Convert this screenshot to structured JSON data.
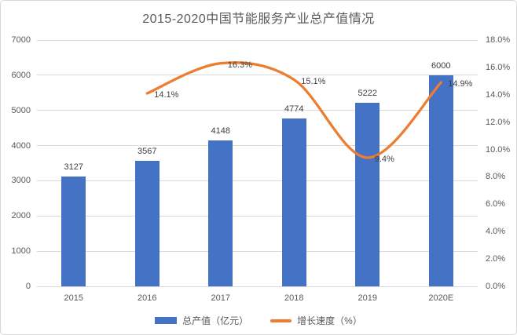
{
  "title": "2015-2020中国节能服务产业总产值情况",
  "colors": {
    "bar": "#4472c4",
    "line": "#ed7d31",
    "gridline": "#d9d9d9",
    "axis_text": "#595959",
    "data_label_text": "#404040"
  },
  "chart_data": {
    "type": "bar",
    "subtype": "combo-bar-line",
    "title": "2015-2020中国节能服务产业总产值情况",
    "categories": [
      "2015",
      "2016",
      "2017",
      "2018",
      "2019",
      "2020E"
    ],
    "series": [
      {
        "name": "总产值（亿元）",
        "type": "bar",
        "axis": "left",
        "color": "#4472c4",
        "values": [
          3127,
          3567,
          4148,
          4774,
          5222,
          6000
        ],
        "labels": [
          "3127",
          "3567",
          "4148",
          "4774",
          "5222",
          "6000"
        ]
      },
      {
        "name": "增长速度（%）",
        "type": "line",
        "axis": "right",
        "color": "#ed7d31",
        "smooth": true,
        "values": [
          null,
          14.1,
          16.3,
          15.1,
          9.4,
          14.9
        ],
        "labels": [
          "",
          "14.1%",
          "16.3%",
          "15.1%",
          "9.4%",
          "14.9%"
        ]
      }
    ],
    "left_axis": {
      "min": 0,
      "max": 7000,
      "step": 1000,
      "ticks": [
        "0",
        "1000",
        "2000",
        "3000",
        "4000",
        "5000",
        "6000",
        "7000"
      ]
    },
    "right_axis": {
      "min": 0,
      "max": 18,
      "step": 2,
      "ticks": [
        "0.0%",
        "2.0%",
        "4.0%",
        "6.0%",
        "8.0%",
        "10.0%",
        "12.0%",
        "14.0%",
        "16.0%",
        "18.0%"
      ]
    },
    "gridlines": true,
    "legend_position": "bottom",
    "legend": [
      {
        "label": "总产值（亿元）",
        "color": "#4472c4",
        "shape": "rect"
      },
      {
        "label": "增长速度（%）",
        "color": "#ed7d31",
        "shape": "line"
      }
    ]
  }
}
